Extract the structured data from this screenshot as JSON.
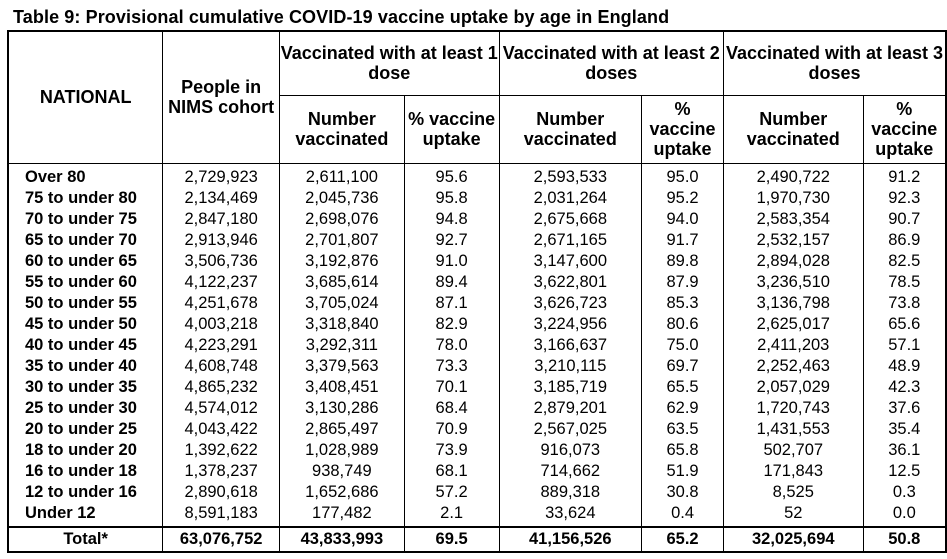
{
  "title": "Table 9: Provisional cumulative COVID-19 vaccine uptake by age in England",
  "headers": {
    "national": "NATIONAL",
    "nims": "People in NIMS cohort",
    "dose1": "Vaccinated with at least 1 dose",
    "dose2": "Vaccinated with at least 2 doses",
    "dose3": "Vaccinated with at least 3 doses",
    "number": "Number vaccinated",
    "pct": "% vaccine uptake"
  },
  "rows": [
    {
      "age": "Over 80",
      "nims": "2,729,923",
      "d1n": "2,611,100",
      "d1p": "95.6",
      "d2n": "2,593,533",
      "d2p": "95.0",
      "d3n": "2,490,722",
      "d3p": "91.2"
    },
    {
      "age": "75 to under 80",
      "nims": "2,134,469",
      "d1n": "2,045,736",
      "d1p": "95.8",
      "d2n": "2,031,264",
      "d2p": "95.2",
      "d3n": "1,970,730",
      "d3p": "92.3"
    },
    {
      "age": "70 to under 75",
      "nims": "2,847,180",
      "d1n": "2,698,076",
      "d1p": "94.8",
      "d2n": "2,675,668",
      "d2p": "94.0",
      "d3n": "2,583,354",
      "d3p": "90.7"
    },
    {
      "age": "65 to under 70",
      "nims": "2,913,946",
      "d1n": "2,701,807",
      "d1p": "92.7",
      "d2n": "2,671,165",
      "d2p": "91.7",
      "d3n": "2,532,157",
      "d3p": "86.9"
    },
    {
      "age": "60 to under 65",
      "nims": "3,506,736",
      "d1n": "3,192,876",
      "d1p": "91.0",
      "d2n": "3,147,600",
      "d2p": "89.8",
      "d3n": "2,894,028",
      "d3p": "82.5"
    },
    {
      "age": "55 to under 60",
      "nims": "4,122,237",
      "d1n": "3,685,614",
      "d1p": "89.4",
      "d2n": "3,622,801",
      "d2p": "87.9",
      "d3n": "3,236,510",
      "d3p": "78.5"
    },
    {
      "age": "50 to under 55",
      "nims": "4,251,678",
      "d1n": "3,705,024",
      "d1p": "87.1",
      "d2n": "3,626,723",
      "d2p": "85.3",
      "d3n": "3,136,798",
      "d3p": "73.8"
    },
    {
      "age": "45 to under 50",
      "nims": "4,003,218",
      "d1n": "3,318,840",
      "d1p": "82.9",
      "d2n": "3,224,956",
      "d2p": "80.6",
      "d3n": "2,625,017",
      "d3p": "65.6"
    },
    {
      "age": "40 to under 45",
      "nims": "4,223,291",
      "d1n": "3,292,311",
      "d1p": "78.0",
      "d2n": "3,166,637",
      "d2p": "75.0",
      "d3n": "2,411,203",
      "d3p": "57.1"
    },
    {
      "age": "35 to under 40",
      "nims": "4,608,748",
      "d1n": "3,379,563",
      "d1p": "73.3",
      "d2n": "3,210,115",
      "d2p": "69.7",
      "d3n": "2,252,463",
      "d3p": "48.9"
    },
    {
      "age": "30 to under 35",
      "nims": "4,865,232",
      "d1n": "3,408,451",
      "d1p": "70.1",
      "d2n": "3,185,719",
      "d2p": "65.5",
      "d3n": "2,057,029",
      "d3p": "42.3"
    },
    {
      "age": "25 to under 30",
      "nims": "4,574,012",
      "d1n": "3,130,286",
      "d1p": "68.4",
      "d2n": "2,879,201",
      "d2p": "62.9",
      "d3n": "1,720,743",
      "d3p": "37.6"
    },
    {
      "age": "20 to under 25",
      "nims": "4,043,422",
      "d1n": "2,865,497",
      "d1p": "70.9",
      "d2n": "2,567,025",
      "d2p": "63.5",
      "d3n": "1,431,553",
      "d3p": "35.4"
    },
    {
      "age": "18 to under 20",
      "nims": "1,392,622",
      "d1n": "1,028,989",
      "d1p": "73.9",
      "d2n": "916,073",
      "d2p": "65.8",
      "d3n": "502,707",
      "d3p": "36.1"
    },
    {
      "age": "16 to under 18",
      "nims": "1,378,237",
      "d1n": "938,749",
      "d1p": "68.1",
      "d2n": "714,662",
      "d2p": "51.9",
      "d3n": "171,843",
      "d3p": "12.5"
    },
    {
      "age": "12 to under 16",
      "nims": "2,890,618",
      "d1n": "1,652,686",
      "d1p": "57.2",
      "d2n": "889,318",
      "d2p": "30.8",
      "d3n": "8,525",
      "d3p": "0.3"
    },
    {
      "age": "Under 12",
      "nims": "8,591,183",
      "d1n": "177,482",
      "d1p": "2.1",
      "d2n": "33,624",
      "d2p": "0.4",
      "d3n": "52",
      "d3p": "0.0"
    }
  ],
  "total": {
    "age": "Total*",
    "nims": "63,076,752",
    "d1n": "43,833,993",
    "d1p": "69.5",
    "d2n": "41,156,526",
    "d2p": "65.2",
    "d3n": "32,025,694",
    "d3p": "50.8"
  }
}
